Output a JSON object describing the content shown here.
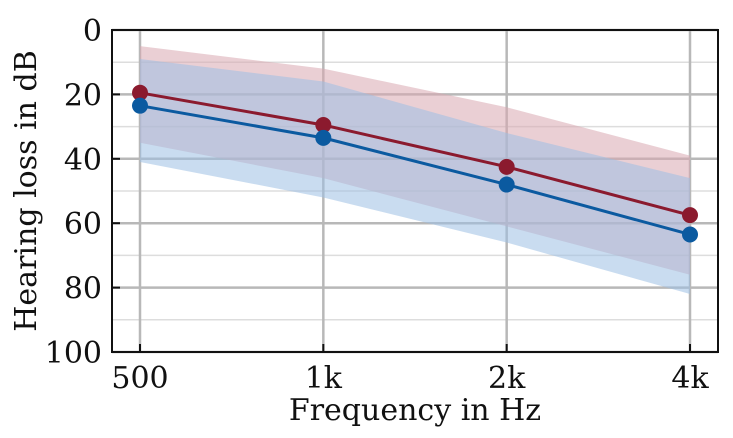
{
  "chart_data": {
    "type": "line",
    "xlabel": "Frequency in Hz",
    "ylabel": "Hearing loss in dB",
    "x_scale": "log",
    "y_inverted": true,
    "categories": [
      "500",
      "1k",
      "2k",
      "4k"
    ],
    "x": [
      500,
      1000,
      2000,
      4000
    ],
    "ylim": [
      0,
      100
    ],
    "yticks": [
      0,
      20,
      40,
      60,
      80,
      100
    ],
    "grid": true,
    "series": [
      {
        "values": [
          19.5,
          29.5,
          42.5,
          57.5
        ],
        "band_lower": [
          5,
          12,
          24,
          39
        ],
        "band_upper": [
          35,
          46,
          61,
          76
        ],
        "color": "#8b1a2e",
        "band_color": "#d9a7b0"
      },
      {
        "values": [
          23.5,
          33.5,
          48,
          63.5
        ],
        "band_lower": [
          9,
          16,
          32,
          46
        ],
        "band_upper": [
          41,
          52,
          66,
          82
        ],
        "color": "#0b5aa0",
        "band_color": "#9cc0e3"
      }
    ]
  }
}
